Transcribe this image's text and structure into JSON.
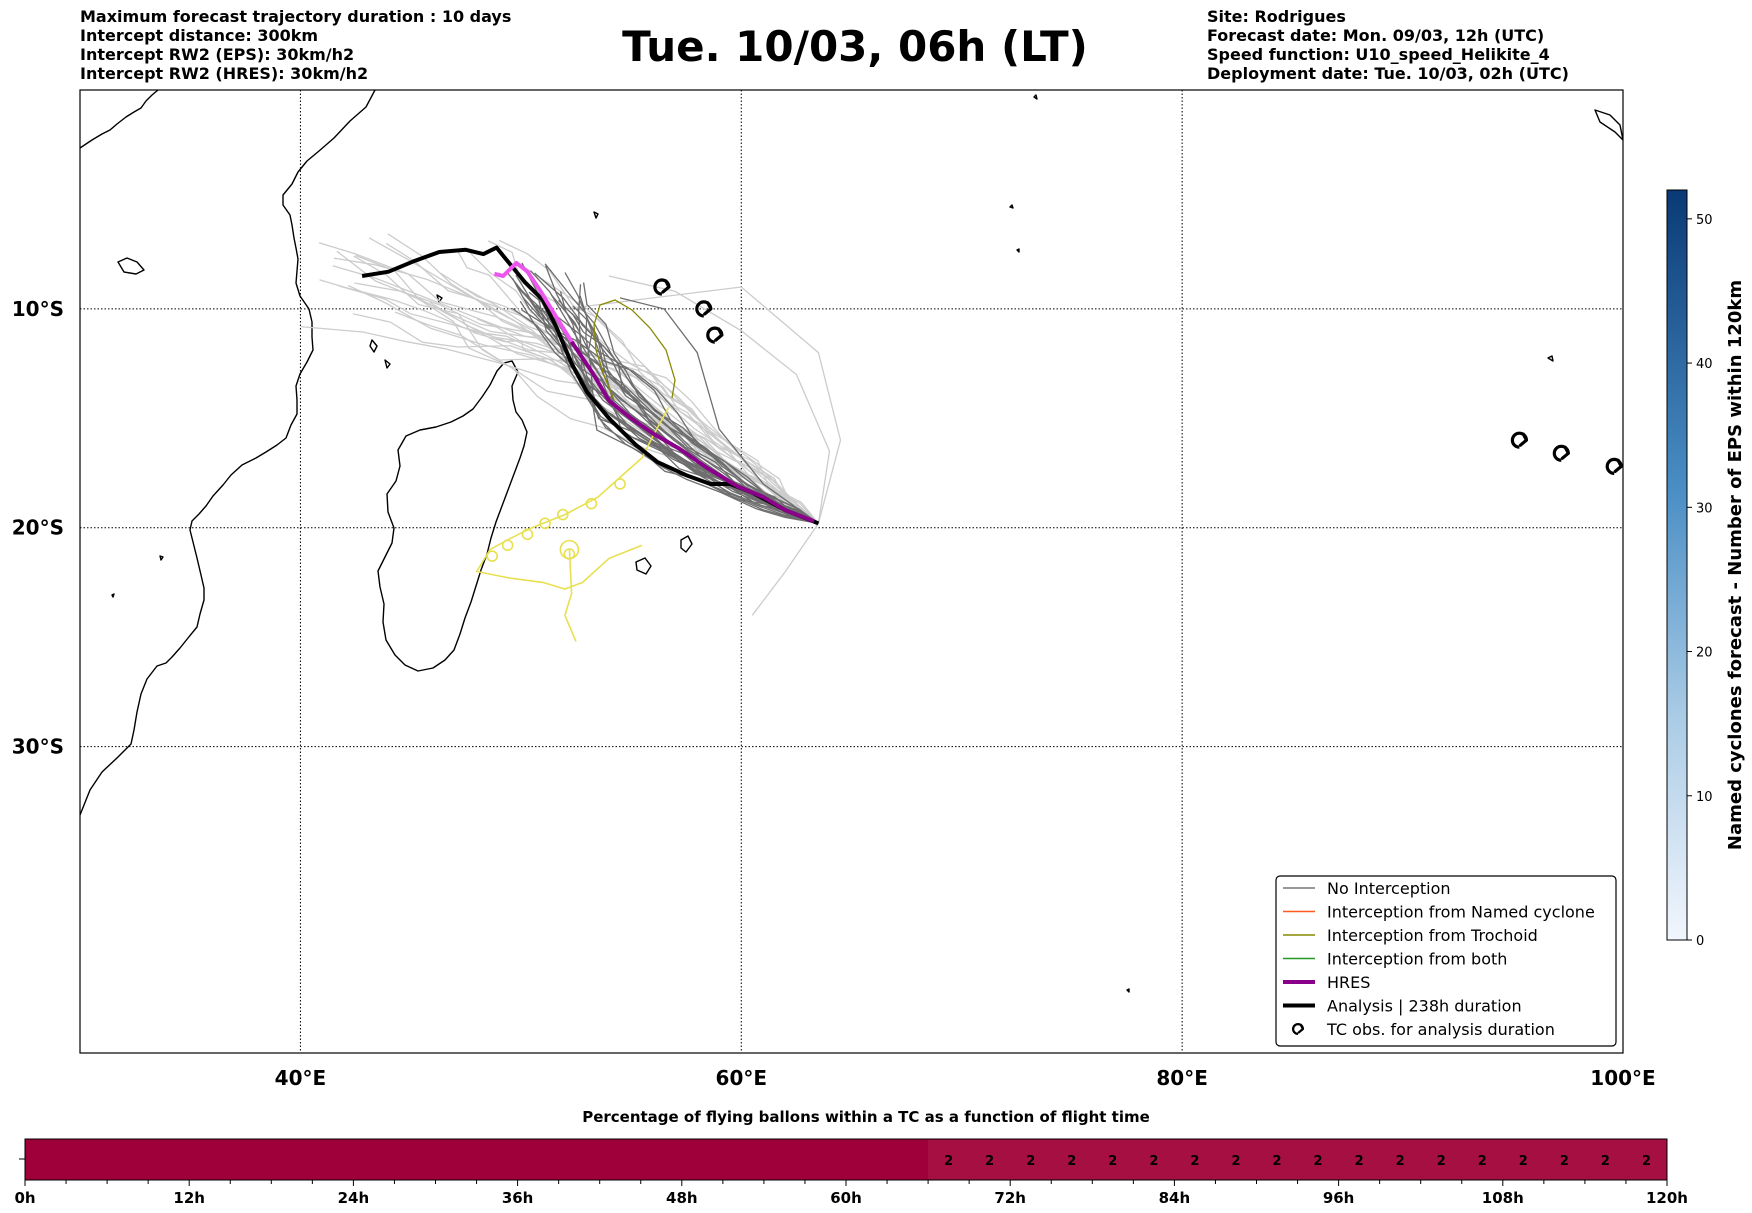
{
  "header": {
    "left": [
      "Maximum forecast trajectory duration : 10 days",
      "Intercept distance: 300km",
      "Intercept RW2 (EPS):  30km/h2",
      "Intercept RW2 (HRES): 30km/h2"
    ],
    "title": "Tue. 10/03, 06h (LT)",
    "right": [
      "Site: Rodrigues",
      "Forecast date: Mon. 09/03, 12h (UTC)",
      "Speed function: U10_speed_Helikite_4",
      "Deployment date: Tue. 10/03, 02h (UTC)"
    ]
  },
  "map": {
    "lon_range": [
      30,
      100
    ],
    "lat_range": [
      -44,
      0
    ],
    "lon_ticks": [
      40,
      60,
      80,
      100
    ],
    "lon_tick_labels": [
      "40°E",
      "60°E",
      "80°E",
      "100°E"
    ],
    "lat_ticks": [
      -10,
      -20,
      -30
    ],
    "lat_tick_labels": [
      "10°S",
      "20°S",
      "30°S"
    ],
    "gridlines": true,
    "colors": {
      "no_interception": "#777777",
      "named_cyclone": "#ff5a1e",
      "trochoid": "#888800",
      "both": "#229922",
      "hres": "#8b008b",
      "hres_highlight": "#ee55ee",
      "analysis": "#000000",
      "ensemble_light": "#cccccc",
      "ensemble_dark": "#6e6e6e",
      "yellow_track": "#e8e050"
    },
    "analysis_track": [
      [
        63.5,
        -19.8
      ],
      [
        62,
        -19.2
      ],
      [
        60.5,
        -18.4
      ],
      [
        59.5,
        -18
      ],
      [
        58.6,
        -18
      ],
      [
        57.5,
        -17.6
      ],
      [
        56.2,
        -17
      ],
      [
        55.2,
        -16.2
      ],
      [
        54,
        -15
      ],
      [
        53,
        -13.8
      ],
      [
        52.3,
        -12.5
      ],
      [
        51.6,
        -10.8
      ],
      [
        51,
        -9.6
      ],
      [
        50.2,
        -8.8
      ],
      [
        49.3,
        -7.7
      ],
      [
        48.9,
        -7.2
      ],
      [
        48.3,
        -7.5
      ],
      [
        47.5,
        -7.3
      ],
      [
        46.3,
        -7.4
      ],
      [
        45.2,
        -7.8
      ],
      [
        44,
        -8.3
      ],
      [
        42.8,
        -8.5
      ]
    ],
    "hres_track": [
      [
        63.3,
        -19.7
      ],
      [
        62,
        -19.2
      ],
      [
        61,
        -18.6
      ],
      [
        59.8,
        -18.1
      ],
      [
        58.5,
        -17.3
      ],
      [
        57.2,
        -16.4
      ],
      [
        56,
        -15.7
      ],
      [
        55,
        -15
      ],
      [
        54,
        -14.2
      ],
      [
        53.3,
        -13
      ],
      [
        52.3,
        -11.5
      ],
      [
        51.5,
        -10.2
      ],
      [
        50.9,
        -9.2
      ],
      [
        50.3,
        -8.3
      ],
      [
        49.8,
        -7.9
      ],
      [
        49.2,
        -8.5
      ],
      [
        48.8,
        -8.4
      ]
    ],
    "tc_markers": [
      [
        56.4,
        -9
      ],
      [
        58.3,
        -10
      ],
      [
        58.8,
        -11.2
      ],
      [
        95.3,
        -16
      ],
      [
        97.2,
        -16.6
      ],
      [
        99.6,
        -17.2
      ]
    ],
    "legend": [
      {
        "label": "No Interception",
        "style": "no_interception"
      },
      {
        "label": "Interception from Named cyclone",
        "style": "named_cyclone"
      },
      {
        "label": "Interception from Trochoid",
        "style": "trochoid"
      },
      {
        "label": "Interception from both",
        "style": "both"
      },
      {
        "label": "HRES",
        "style": "hres"
      },
      {
        "label": "Analysis | 238h duration",
        "style": "analysis"
      },
      {
        "label": "TC obs. for analysis duration",
        "style": "tc"
      }
    ]
  },
  "colorbar": {
    "label": "Named cyclones forecast - Number of EPS within 120km",
    "min": 0,
    "max": 52,
    "ticks": [
      0,
      10,
      20,
      30,
      40,
      50
    ],
    "color_low": "#f2f6fd",
    "color_high": "#0a3a75"
  },
  "timeline": {
    "title": "Percentage of flying ballons within a TC as a function of flight time",
    "max_hours": 120,
    "ticks": [
      "0h",
      "12h",
      "24h",
      "36h",
      "48h",
      "60h",
      "72h",
      "84h",
      "96h",
      "108h",
      "120h"
    ],
    "start_hour_values": 66,
    "value": "2",
    "value_count": 18,
    "color_base": "#a0003a",
    "color_value": "#a60f42"
  }
}
